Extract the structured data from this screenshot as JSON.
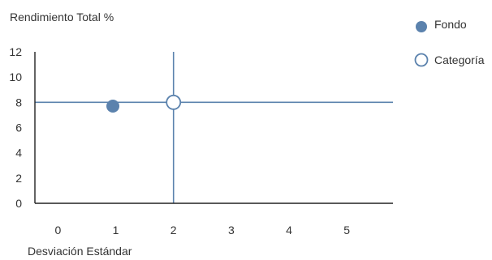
{
  "chart_data": {
    "type": "scatter",
    "title": "",
    "ylabel": "Rendimiento Total %",
    "xlabel": "Desviación Estándar",
    "xlim": [
      -0.4,
      5.8
    ],
    "ylim": [
      0,
      12
    ],
    "x_ticks": [
      "0",
      "1",
      "2",
      "3",
      "4",
      "5"
    ],
    "y_ticks": [
      "0",
      "2",
      "4",
      "6",
      "8",
      "10",
      "12"
    ],
    "grid": false,
    "legend": "top-right",
    "series": [
      {
        "name": "Fondo",
        "marker": "filled-circle",
        "color": "#5b82ad",
        "points": [
          {
            "x": 0.95,
            "y": 7.7
          }
        ]
      },
      {
        "name": "Categoría",
        "marker": "hollow-circle",
        "color": "#5b82ad",
        "points": [
          {
            "x": 2.0,
            "y": 8.0
          }
        ]
      }
    ],
    "reference_lines": [
      {
        "orientation": "vertical",
        "value": 2.0,
        "color": "#5b82ad"
      },
      {
        "orientation": "horizontal",
        "value": 8.0,
        "color": "#5b82ad"
      }
    ],
    "axis_color": "#222222"
  }
}
